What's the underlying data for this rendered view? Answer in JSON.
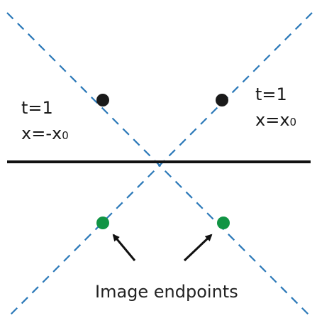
{
  "labels": {
    "left_t": "t=1",
    "left_x_main": "x=-x",
    "left_x_sub": "0",
    "right_t": "t=1",
    "right_x_main": "x=x",
    "right_x_sub": "0",
    "caption": "Image endpoints"
  },
  "colors": {
    "dashed_line": "#2a78b8",
    "axis": "#111111",
    "real_endpoint": "#1a1a1a",
    "image_endpoint": "#119444",
    "arrow": "#111111",
    "text": "#1a1a1a"
  }
}
